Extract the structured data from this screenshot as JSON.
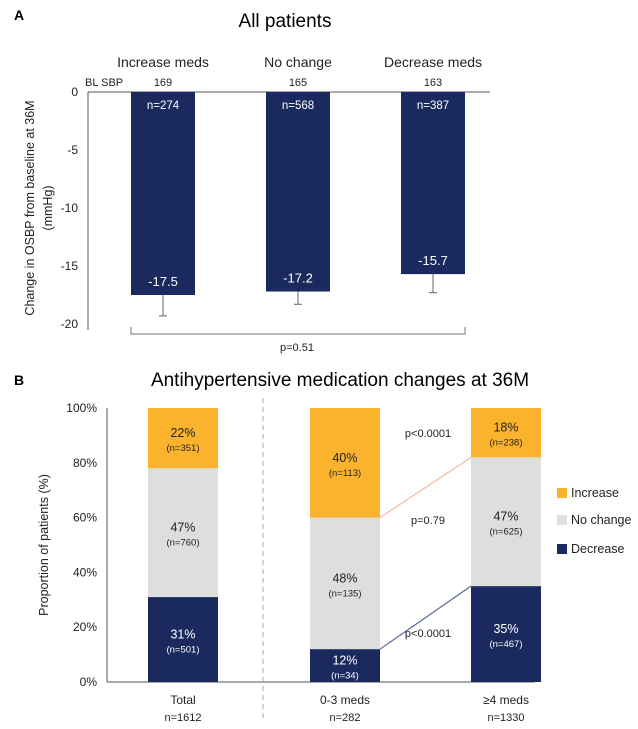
{
  "panel_a": {
    "letter": "A",
    "title": "All patients",
    "ylabel": "Change in OSBP from baseline at 36M (mmHg)",
    "ylabel_line1": "Change in OSBP from baseline at 36M",
    "ylabel_line2": "(mmHg)",
    "bl_label": "BL SBP",
    "pvalue": "p=0.51",
    "yticks": [
      "0",
      "-5",
      "-10",
      "-15",
      "-20"
    ],
    "color": "#1b2a5e"
  },
  "panel_b": {
    "letter": "B",
    "title": "Antihypertensive medication changes at 36M",
    "ylabel": "Proportion of patients (%)",
    "yticks": [
      "0%",
      "20%",
      "40%",
      "60%",
      "80%",
      "100%"
    ],
    "legend": [
      {
        "label": "Increase",
        "color": "#fbb32e"
      },
      {
        "label": "No change",
        "color": "#dcdfdc"
      },
      {
        "label": "Decrease",
        "color": "#1b2a5e"
      }
    ],
    "pvalues": [
      "p<0.0001",
      "p=0.79",
      "p<0.0001"
    ]
  },
  "chart_data": [
    {
      "type": "bar",
      "title": "All patients",
      "ylabel": "Change in OSBP from baseline at 36M (mmHg)",
      "ylim": [
        -20,
        0
      ],
      "categories": [
        "Increase meds",
        "No change",
        "Decrease meds"
      ],
      "bl_sbp": [
        "169",
        "165",
        "163"
      ],
      "n": [
        "n=274",
        "n=568",
        "n=387"
      ],
      "values": [
        -17.5,
        -17.2,
        -15.7
      ],
      "value_labels": [
        "-17.5",
        "-17.2",
        "-15.7"
      ],
      "errors": [
        1.8,
        1.1,
        1.6
      ],
      "grid": false
    },
    {
      "type": "bar",
      "stacked": true,
      "title": "Antihypertensive medication changes at 36M",
      "ylabel": "Proportion of patients (%)",
      "ylim": [
        0,
        100
      ],
      "categories": [
        "Total",
        "0-3 meds",
        "≥4 meds"
      ],
      "category_n": [
        "n=1612",
        "n=282",
        "n=1330"
      ],
      "series": [
        {
          "name": "Decrease",
          "values": [
            31,
            12,
            35
          ],
          "labels": [
            "31%",
            "12%",
            "35%"
          ],
          "n": [
            "(n=501)",
            "(n=34)",
            "(n=467)"
          ]
        },
        {
          "name": "No change",
          "values": [
            47,
            48,
            47
          ],
          "labels": [
            "47%",
            "48%",
            "47%"
          ],
          "n": [
            "(n=760)",
            "(n=135)",
            "(n=625)"
          ]
        },
        {
          "name": "Increase",
          "values": [
            22,
            40,
            18
          ],
          "labels": [
            "22%",
            "40%",
            "18%"
          ],
          "n": [
            "(n=351)",
            "(n=113)",
            "(n=238)"
          ]
        }
      ],
      "legend_position": "right",
      "grid": false
    }
  ]
}
